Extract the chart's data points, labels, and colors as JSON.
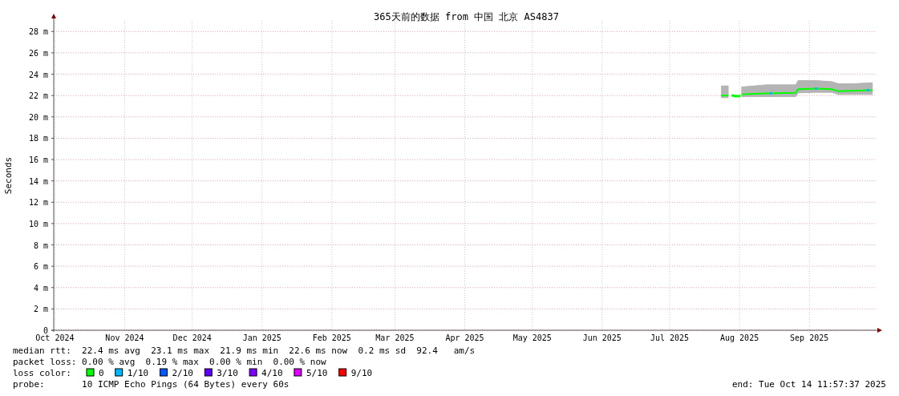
{
  "chart_data": {
    "type": "line",
    "title": "365天前的数据 from 中国 北京 AS4837",
    "ylabel": "Seconds",
    "legend_title": "loss color:",
    "legend": "bottom",
    "grid": true,
    "xlim": [
      "2024-10-14T12:00",
      "2025-10-14T12:00"
    ],
    "xticks": [
      {
        "value": "2024-10-15",
        "label": "Oct 2024"
      },
      {
        "value": "2024-11-15",
        "label": "Nov 2024"
      },
      {
        "value": "2024-12-15",
        "label": "Dec 2024"
      },
      {
        "value": "2025-01-15",
        "label": "Jan 2025"
      },
      {
        "value": "2025-02-15",
        "label": "Feb 2025"
      },
      {
        "value": "2025-03-15",
        "label": "Mar 2025"
      },
      {
        "value": "2025-04-15",
        "label": "Apr 2025"
      },
      {
        "value": "2025-05-15",
        "label": "May 2025"
      },
      {
        "value": "2025-06-15",
        "label": "Jun 2025"
      },
      {
        "value": "2025-07-15",
        "label": "Jul 2025"
      },
      {
        "value": "2025-08-15",
        "label": "Aug 2025"
      },
      {
        "value": "2025-09-15",
        "label": "Sep 2025"
      }
    ],
    "ylim": [
      0,
      29
    ],
    "yticks": [
      0,
      {
        "value": 2,
        "label": "2 m"
      },
      {
        "value": 4,
        "label": "4 m"
      },
      {
        "value": 6,
        "label": "6 m"
      },
      {
        "value": 8,
        "label": "8 m"
      },
      {
        "value": 10,
        "label": "10 m"
      },
      {
        "value": 12,
        "label": "12 m"
      },
      {
        "value": 14,
        "label": "14 m"
      },
      {
        "value": 16,
        "label": "16 m"
      },
      {
        "value": 18,
        "label": "18 m"
      },
      {
        "value": 20,
        "label": "20 m"
      },
      {
        "value": 22,
        "label": "22 m"
      },
      {
        "value": 24,
        "label": "24 m"
      },
      {
        "value": 26,
        "label": "26 m"
      },
      {
        "value": 28,
        "label": "28 m"
      }
    ],
    "series": [
      {
        "name": "0",
        "color": "#00ff00",
        "x": [
          "2025-08-16",
          "2025-08-27",
          "2025-09-09",
          "2025-09-10",
          "2025-09-18",
          "2025-09-25",
          "2025-09-28",
          "2025-10-04",
          "2025-10-13"
        ],
        "values": [
          22.1,
          22.2,
          22.25,
          22.6,
          22.65,
          22.6,
          22.4,
          22.45,
          22.5
        ],
        "lower": [
          21.9,
          21.9,
          21.9,
          22.25,
          22.3,
          22.3,
          22.1,
          22.1,
          22.1
        ],
        "upper": [
          22.8,
          23.0,
          23.0,
          23.4,
          23.4,
          23.3,
          23.1,
          23.1,
          23.2
        ]
      },
      {
        "color": "#00ff00",
        "x": [
          "2025-08-07",
          "2025-08-10"
        ],
        "values": [
          22.0,
          22.0
        ],
        "lower": [
          21.8,
          21.8
        ],
        "upper": [
          22.9,
          22.9
        ]
      },
      {
        "color": "#00ff00",
        "type": "scatter",
        "x": [
          "2025-08-12"
        ],
        "values": [
          22.0
        ]
      },
      {
        "color": "#00ff00",
        "type": "scatter",
        "x": [
          "2025-08-13",
          "2025-08-14",
          "2025-08-15"
        ],
        "values": [
          21.95,
          21.95,
          21.95
        ]
      },
      {
        "name": "1/10",
        "color": "#00b8ff",
        "type": "scatter",
        "x": [
          "2025-08-29",
          "2025-09-18",
          "2025-10-11"
        ],
        "values": [
          22.2,
          22.65,
          22.5
        ]
      },
      {
        "name": "2/10",
        "color": "#0059ff",
        "type": "scatter"
      },
      {
        "name": "3/10",
        "color": "#5e00ff",
        "type": "scatter"
      },
      {
        "name": "4/10",
        "color": "#7e00ff",
        "type": "scatter"
      },
      {
        "name": "5/10",
        "color": "#dd00ff",
        "type": "scatter"
      },
      {
        "name": "9/10",
        "color": "#ff0000",
        "type": "scatter"
      }
    ],
    "annotations": [
      "median rtt:  22.4 ms avg  23.1 ms max  21.9 ms min  22.6 ms now  0.2 ms sd  92.4   am/s",
      "packet loss: 0.00 % avg  0.19 % max  0.00 % min  0.00 % now",
      "probe:       10 ICMP Echo Pings (64 Bytes) every 60s",
      "end: Tue Oct 14 11:57:37 2025"
    ]
  }
}
